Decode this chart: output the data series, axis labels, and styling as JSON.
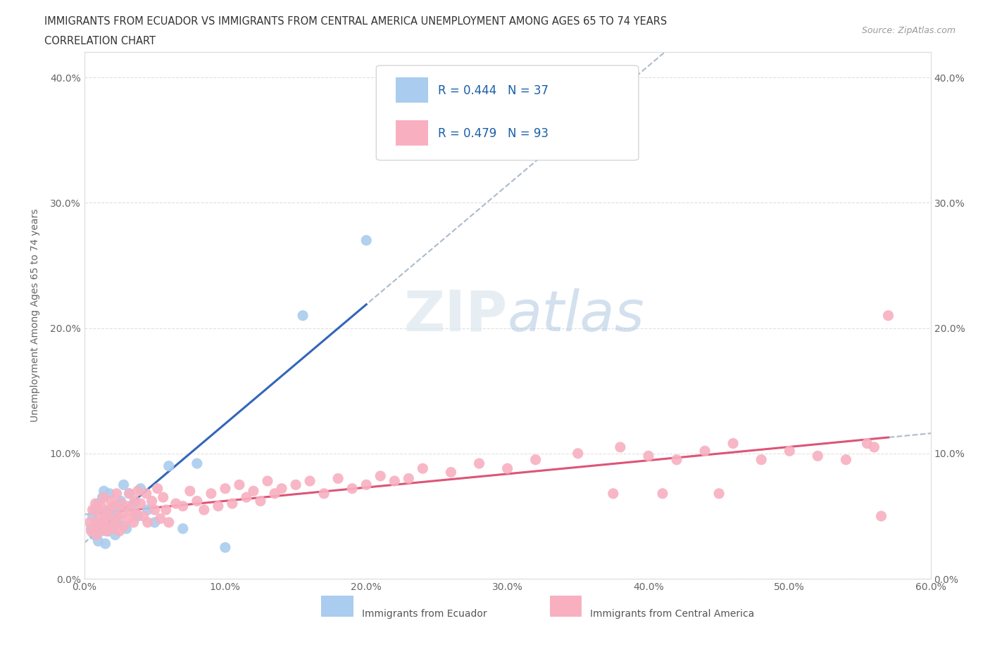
{
  "title_line1": "IMMIGRANTS FROM ECUADOR VS IMMIGRANTS FROM CENTRAL AMERICA UNEMPLOYMENT AMONG AGES 65 TO 74 YEARS",
  "title_line2": "CORRELATION CHART",
  "source": "Source: ZipAtlas.com",
  "ylabel": "Unemployment Among Ages 65 to 74 years",
  "xmin": 0.0,
  "xmax": 0.6,
  "ymin": 0.0,
  "ymax": 0.42,
  "xticks": [
    0.0,
    0.1,
    0.2,
    0.3,
    0.4,
    0.5,
    0.6
  ],
  "xtick_labels": [
    "0.0%",
    "10.0%",
    "20.0%",
    "30.0%",
    "40.0%",
    "50.0%",
    "60.0%"
  ],
  "yticks": [
    0.0,
    0.1,
    0.2,
    0.3,
    0.4
  ],
  "ytick_labels": [
    "0.0%",
    "10.0%",
    "20.0%",
    "30.0%",
    "40.0%"
  ],
  "ecuador_color": "#aaccee",
  "central_america_color": "#f8b0c0",
  "ecuador_line_color": "#3366bb",
  "central_america_line_color": "#dd5577",
  "dashed_line_color": "#aabbcc",
  "legend_r1": "R = 0.444",
  "legend_n1": "N = 37",
  "legend_r2": "R = 0.479",
  "legend_n2": "N = 93",
  "legend_label1": "Immigrants from Ecuador",
  "legend_label2": "Immigrants from Central America",
  "watermark_text": "ZIPatlas",
  "ecuador_x": [
    0.005,
    0.006,
    0.007,
    0.008,
    0.009,
    0.01,
    0.01,
    0.011,
    0.012,
    0.013,
    0.014,
    0.015,
    0.015,
    0.016,
    0.017,
    0.018,
    0.019,
    0.02,
    0.021,
    0.022,
    0.023,
    0.024,
    0.026,
    0.028,
    0.03,
    0.032,
    0.035,
    0.038,
    0.04,
    0.045,
    0.05,
    0.06,
    0.07,
    0.08,
    0.1,
    0.155,
    0.2
  ],
  "ecuador_y": [
    0.04,
    0.05,
    0.035,
    0.055,
    0.045,
    0.06,
    0.03,
    0.045,
    0.038,
    0.065,
    0.07,
    0.028,
    0.042,
    0.052,
    0.038,
    0.068,
    0.055,
    0.04,
    0.05,
    0.035,
    0.058,
    0.045,
    0.062,
    0.075,
    0.04,
    0.068,
    0.06,
    0.05,
    0.072,
    0.055,
    0.045,
    0.09,
    0.04,
    0.092,
    0.025,
    0.21,
    0.27
  ],
  "central_x": [
    0.004,
    0.005,
    0.006,
    0.007,
    0.008,
    0.009,
    0.01,
    0.01,
    0.011,
    0.012,
    0.013,
    0.014,
    0.015,
    0.015,
    0.016,
    0.017,
    0.018,
    0.019,
    0.02,
    0.021,
    0.022,
    0.023,
    0.024,
    0.025,
    0.026,
    0.027,
    0.028,
    0.03,
    0.031,
    0.032,
    0.033,
    0.035,
    0.036,
    0.037,
    0.038,
    0.04,
    0.042,
    0.044,
    0.045,
    0.048,
    0.05,
    0.052,
    0.054,
    0.056,
    0.058,
    0.06,
    0.065,
    0.07,
    0.075,
    0.08,
    0.085,
    0.09,
    0.095,
    0.1,
    0.105,
    0.11,
    0.115,
    0.12,
    0.125,
    0.13,
    0.135,
    0.14,
    0.15,
    0.16,
    0.17,
    0.18,
    0.19,
    0.2,
    0.21,
    0.22,
    0.23,
    0.24,
    0.26,
    0.28,
    0.3,
    0.32,
    0.35,
    0.38,
    0.4,
    0.42,
    0.44,
    0.46,
    0.48,
    0.5,
    0.52,
    0.54,
    0.555,
    0.56,
    0.565,
    0.57,
    0.375,
    0.41,
    0.45
  ],
  "central_y": [
    0.045,
    0.038,
    0.055,
    0.042,
    0.06,
    0.035,
    0.048,
    0.055,
    0.04,
    0.058,
    0.045,
    0.065,
    0.042,
    0.05,
    0.038,
    0.055,
    0.048,
    0.062,
    0.04,
    0.058,
    0.045,
    0.068,
    0.05,
    0.038,
    0.06,
    0.052,
    0.042,
    0.058,
    0.048,
    0.068,
    0.055,
    0.045,
    0.062,
    0.052,
    0.07,
    0.06,
    0.05,
    0.068,
    0.045,
    0.062,
    0.055,
    0.072,
    0.048,
    0.065,
    0.055,
    0.045,
    0.06,
    0.058,
    0.07,
    0.062,
    0.055,
    0.068,
    0.058,
    0.072,
    0.06,
    0.075,
    0.065,
    0.07,
    0.062,
    0.078,
    0.068,
    0.072,
    0.075,
    0.078,
    0.068,
    0.08,
    0.072,
    0.075,
    0.082,
    0.078,
    0.08,
    0.088,
    0.085,
    0.092,
    0.088,
    0.095,
    0.1,
    0.105,
    0.098,
    0.095,
    0.102,
    0.108,
    0.095,
    0.102,
    0.098,
    0.095,
    0.108,
    0.105,
    0.05,
    0.21,
    0.068,
    0.068,
    0.068
  ]
}
